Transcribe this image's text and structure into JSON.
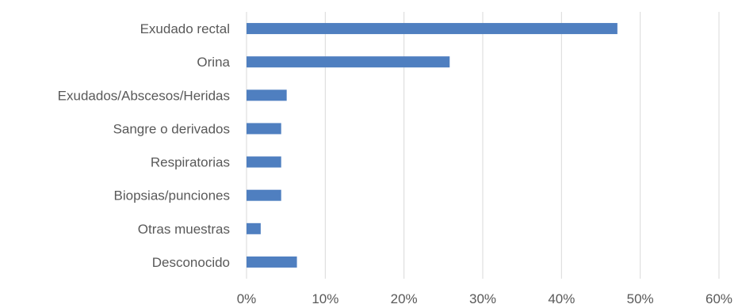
{
  "chart_data": {
    "type": "bar",
    "orientation": "horizontal",
    "categories": [
      "Exudado rectal",
      "Orina",
      "Exudados/Abscesos/Heridas",
      "Sangre o derivados",
      "Respiratorias",
      "Biopsias/punciones",
      "Otras muestras",
      "Desconocido"
    ],
    "values": [
      47.1,
      25.8,
      5.1,
      4.4,
      4.4,
      4.4,
      1.8,
      6.4
    ],
    "x_ticks": [
      "0%",
      "10%",
      "20%",
      "30%",
      "40%",
      "50%",
      "60%"
    ],
    "xlim": [
      0,
      60
    ],
    "grid": true,
    "legend": "none",
    "bar_color": "#4f7fc0",
    "grid_color": "#d9d9d9",
    "text_color": "#595959"
  }
}
